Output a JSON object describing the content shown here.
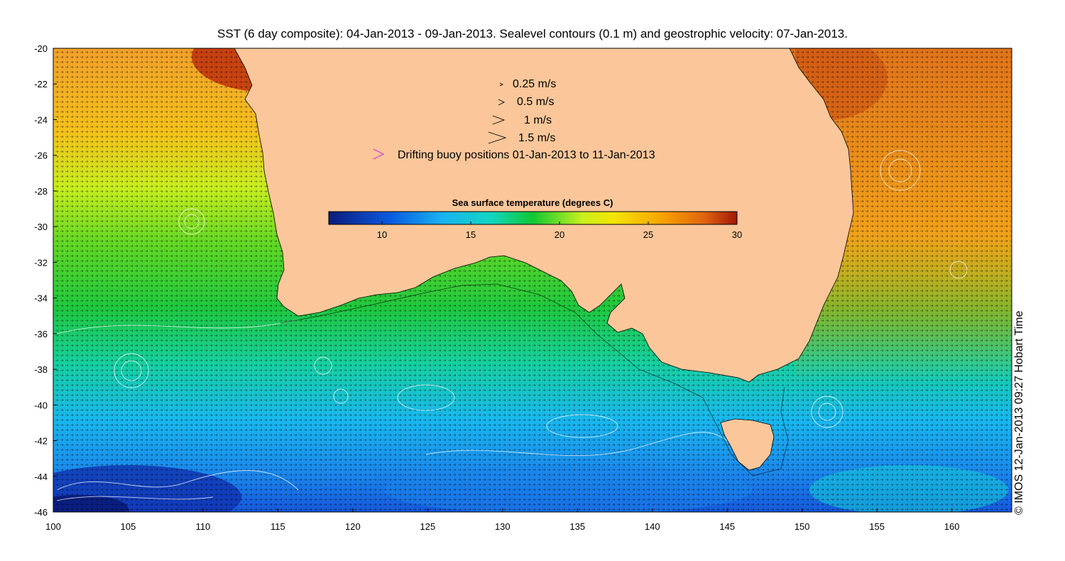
{
  "title": "SST (6 day composite): 04-Jan-2013 - 09-Jan-2013. Sealevel contours (0.1 m) and geostrophic velocity: 07-Jan-2013.",
  "credit": "© IMOS 12-Jan-2013 09:27 Hobart Time",
  "map": {
    "lon_range": [
      100,
      164
    ],
    "lat_range": [
      -46,
      -20
    ],
    "lon_ticks": [
      "100",
      "105",
      "110",
      "115",
      "120",
      "125",
      "130",
      "135",
      "140",
      "145",
      "150",
      "155",
      "160"
    ],
    "lat_ticks": [
      "-20",
      "-22",
      "-24",
      "-26",
      "-28",
      "-30",
      "-32",
      "-34",
      "-36",
      "-38",
      "-40",
      "-42",
      "-44",
      "-46"
    ],
    "colors": {
      "land": "#fbc79a",
      "frame": "#000000",
      "contour": "#ffffff",
      "vector": "#000000",
      "buoy": "#d23ad2"
    }
  },
  "legend": {
    "vectors": [
      {
        "label": "0.25 m/s",
        "speed": 0.25
      },
      {
        "label": "0.5 m/s",
        "speed": 0.5
      },
      {
        "label": "1 m/s",
        "speed": 1
      },
      {
        "label": "1.5 m/s",
        "speed": 1.5
      }
    ],
    "buoy_label": "Drifting buoy positions 01-Jan-2013 to 11-Jan-2013"
  },
  "colorbar": {
    "title": "Sea surface temperature (degrees C)",
    "range": [
      7,
      30
    ],
    "ticks": [
      "10",
      "15",
      "20",
      "25",
      "30"
    ]
  }
}
